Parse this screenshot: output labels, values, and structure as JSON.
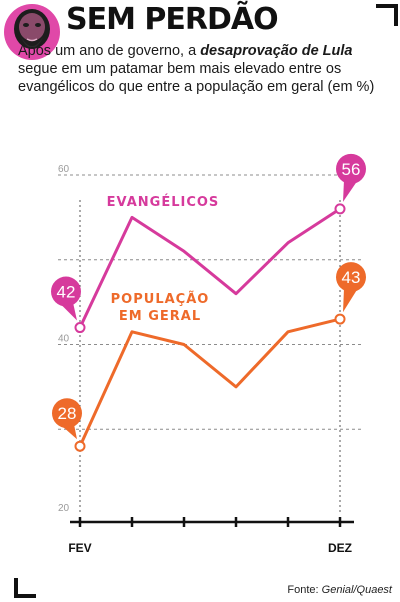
{
  "header": {
    "title": "SEM PERDÃO",
    "intro_lead": "Após um ano de governo, a ",
    "intro_highlight": "desaprovação de Lula",
    "intro_rest": " segue em um patamar bem mais elevado entre os evangélicos do que entre a população em geral (em %)"
  },
  "source": {
    "prefix": "Fonte: ",
    "name": "Genial/Quaest"
  },
  "chart_data": {
    "type": "line",
    "x": [
      "FEV",
      "",
      "",
      "",
      "",
      "DEZ"
    ],
    "ylim": [
      20,
      60
    ],
    "yticks": [
      20,
      40,
      60
    ],
    "gridlines": [
      30,
      40,
      50,
      60
    ],
    "grid": true,
    "series": [
      {
        "name": "EVANGÉLICOS",
        "color": "#d63a9c",
        "values": [
          42,
          55,
          51,
          46,
          52,
          56
        ],
        "labels": [
          "42",
          "",
          "",
          "",
          "",
          "56"
        ]
      },
      {
        "name": "POPULAÇÃO EM GERAL",
        "color": "#ee6a2a",
        "values": [
          28,
          41.5,
          40,
          35,
          41.5,
          43
        ],
        "labels": [
          "28",
          "",
          "",
          "",
          "",
          "43"
        ]
      }
    ]
  }
}
